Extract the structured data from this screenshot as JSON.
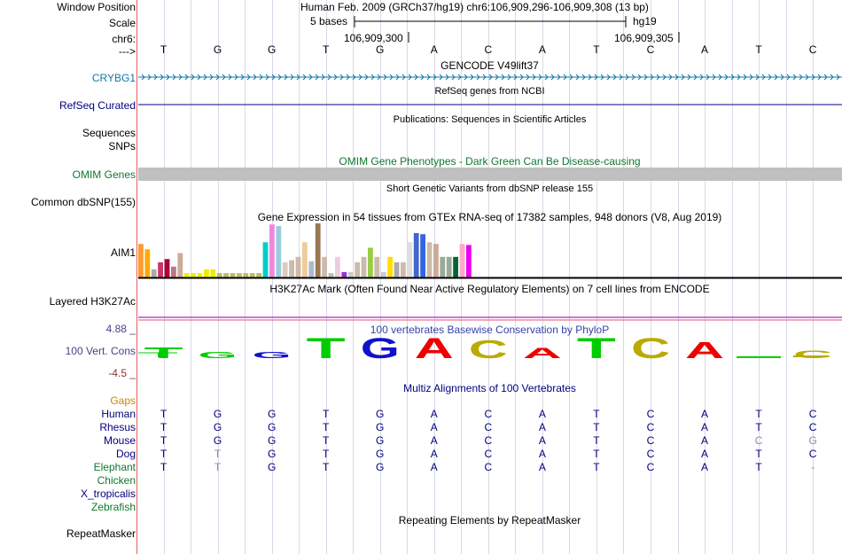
{
  "header": {
    "window_label": "Window Position",
    "window_value": "Human Feb. 2009 (GRCh37/hg19)   chr6:106,909,296-106,909,308 (13 bp)",
    "scale_label": "Scale",
    "scale_text": "5 bases",
    "assembly": "hg19",
    "chrom_label": "chr6:",
    "pos1": "106,909,300",
    "pos2": "106,909,305",
    "strand_label": "--->"
  },
  "bases": [
    "T",
    "G",
    "G",
    "T",
    "G",
    "A",
    "C",
    "A",
    "T",
    "C",
    "A",
    "T",
    "C"
  ],
  "tracks": {
    "gencode_title": "GENCODE V49lift37",
    "gencode_gene": "CRYBG1",
    "refseq_title": "RefSeq genes from NCBI",
    "refseq_label": "RefSeq Curated",
    "pubs_title": "Publications: Sequences in Scientific Articles",
    "pubs_label1": "Sequences",
    "pubs_label2": "SNPs",
    "omim_title": "OMIM Gene Phenotypes - Dark Green Can Be Disease-causing",
    "omim_label": "OMIM Genes",
    "dbsnp_title": "Short Genetic Variants from dbSNP release 155",
    "dbsnp_label": "Common dbSNP(155)",
    "gtex_title": "Gene Expression in 54 tissues from GTEx RNA-seq of 17382 samples, 948 donors (V8, Aug 2019)",
    "gtex_label": "AIM1",
    "h3k_title": "H3K27Ac Mark (Often Found Near Active Regulatory Elements) on 7 cell lines from ENCODE",
    "h3k_label": "Layered H3K27Ac",
    "cons_title": "100 vertebrates Basewise Conservation by PhyloP",
    "cons_label": "100 Vert. Cons",
    "cons_max": "4.88 _",
    "cons_min": "-4.5 _",
    "multiz_title": "Multiz Alignments of 100 Vertebrates",
    "gaps_label": "Gaps",
    "repeat_title": "Repeating Elements by RepeatMasker",
    "repeat_label": "RepeatMasker"
  },
  "species": [
    {
      "name": "Human",
      "seq": [
        "T",
        "G",
        "G",
        "T",
        "G",
        "A",
        "C",
        "A",
        "T",
        "C",
        "A",
        "T",
        "C"
      ],
      "faint": []
    },
    {
      "name": "Rhesus",
      "seq": [
        "T",
        "G",
        "G",
        "T",
        "G",
        "A",
        "C",
        "A",
        "T",
        "C",
        "A",
        "T",
        "C"
      ],
      "faint": []
    },
    {
      "name": "Mouse",
      "seq": [
        "T",
        "G",
        "G",
        "T",
        "G",
        "A",
        "C",
        "A",
        "T",
        "C",
        "A",
        "C",
        "G"
      ],
      "faint": [
        11,
        12
      ]
    },
    {
      "name": "Dog",
      "seq": [
        "T",
        "T",
        "G",
        "T",
        "G",
        "A",
        "C",
        "A",
        "T",
        "C",
        "A",
        "T",
        "C"
      ],
      "faint": [
        1
      ]
    },
    {
      "name": "Elephant",
      "seq": [
        "T",
        "T",
        "G",
        "T",
        "G",
        "A",
        "C",
        "A",
        "T",
        "C",
        "A",
        "T",
        "-"
      ],
      "faint": [
        1,
        12
      ]
    },
    {
      "name": "Chicken",
      "seq": [],
      "faint": []
    },
    {
      "name": "X_tropicalis",
      "seq": [],
      "faint": []
    },
    {
      "name": "Zebrafish",
      "seq": [],
      "faint": []
    }
  ],
  "gtex_bars": [
    {
      "v": 0.62,
      "c": "#ff9933"
    },
    {
      "v": 0.52,
      "c": "#ffaa00"
    },
    {
      "v": 0.15,
      "c": "#aaaaaa"
    },
    {
      "v": 0.28,
      "c": "#cc3366"
    },
    {
      "v": 0.34,
      "c": "#aa0033"
    },
    {
      "v": 0.2,
      "c": "#bb7788"
    },
    {
      "v": 0.45,
      "c": "#ccaa99"
    },
    {
      "v": 0.08,
      "c": "#eeee00"
    },
    {
      "v": 0.08,
      "c": "#eeee00"
    },
    {
      "v": 0.08,
      "c": "#eeee00"
    },
    {
      "v": 0.15,
      "c": "#eeee00"
    },
    {
      "v": 0.15,
      "c": "#eeee00"
    },
    {
      "v": 0.08,
      "c": "#bbbb66"
    },
    {
      "v": 0.08,
      "c": "#bbbb66"
    },
    {
      "v": 0.08,
      "c": "#bbbb66"
    },
    {
      "v": 0.08,
      "c": "#bbbb66"
    },
    {
      "v": 0.08,
      "c": "#bbbb66"
    },
    {
      "v": 0.08,
      "c": "#bbbb66"
    },
    {
      "v": 0.08,
      "c": "#bbbb66"
    },
    {
      "v": 0.65,
      "c": "#00cccc"
    },
    {
      "v": 0.98,
      "c": "#ee88dd"
    },
    {
      "v": 0.95,
      "c": "#99ccdd"
    },
    {
      "v": 0.28,
      "c": "#ddccbb"
    },
    {
      "v": 0.32,
      "c": "#ccbbaa"
    },
    {
      "v": 0.38,
      "c": "#ccbbaa"
    },
    {
      "v": 0.65,
      "c": "#eecc99"
    },
    {
      "v": 0.3,
      "c": "#aabbcc"
    },
    {
      "v": 1.0,
      "c": "#997755"
    },
    {
      "v": 0.38,
      "c": "#ccbbaa"
    },
    {
      "v": 0.08,
      "c": "#bbbbbb"
    },
    {
      "v": 0.38,
      "c": "#eeccdd"
    },
    {
      "v": 0.1,
      "c": "#9933cc"
    },
    {
      "v": 0.1,
      "c": "#cccccc"
    },
    {
      "v": 0.28,
      "c": "#ccbbaa"
    },
    {
      "v": 0.38,
      "c": "#ccbbaa"
    },
    {
      "v": 0.55,
      "c": "#99cc44"
    },
    {
      "v": 0.38,
      "c": "#ccbbaa"
    },
    {
      "v": 0.1,
      "c": "#cccccc"
    },
    {
      "v": 0.38,
      "c": "#ffdd00"
    },
    {
      "v": 0.28,
      "c": "#aaaaaa"
    },
    {
      "v": 0.28,
      "c": "#ccbbaa"
    },
    {
      "v": 0.65,
      "c": "#dddddd"
    },
    {
      "v": 0.82,
      "c": "#4466cc"
    },
    {
      "v": 0.8,
      "c": "#3366dd"
    },
    {
      "v": 0.65,
      "c": "#ccbbaa"
    },
    {
      "v": 0.62,
      "c": "#ccaa99"
    },
    {
      "v": 0.38,
      "c": "#99aa99"
    },
    {
      "v": 0.38,
      "c": "#99aa99"
    },
    {
      "v": 0.38,
      "c": "#006633"
    },
    {
      "v": 0.62,
      "c": "#ffaacc"
    },
    {
      "v": 0.6,
      "c": "#ee00ee"
    }
  ],
  "cons_colors": [
    "#00cc00",
    "#00cc00",
    "#1111cc",
    "#00cc00",
    "#1111cc",
    "#ee0000",
    "#bbaa00",
    "#ee0000",
    "#00cc00",
    "#bbaa00",
    "#ee0000",
    "#00cc00",
    "#bbaa00"
  ],
  "cons_vals": [
    0.4,
    0.1,
    0.1,
    1.0,
    1.0,
    1.0,
    0.85,
    0.35,
    1.0,
    1.0,
    0.75,
    0.0,
    0.15
  ],
  "colors": {
    "accent": "#00007f",
    "gencode": "#1077aa",
    "omim": "#11772f",
    "gaps": "#cc8800",
    "cons_title": "#3344aa",
    "cons_max": "#444488",
    "cons_min": "#883333",
    "h3k_line": "#cc44cc"
  }
}
